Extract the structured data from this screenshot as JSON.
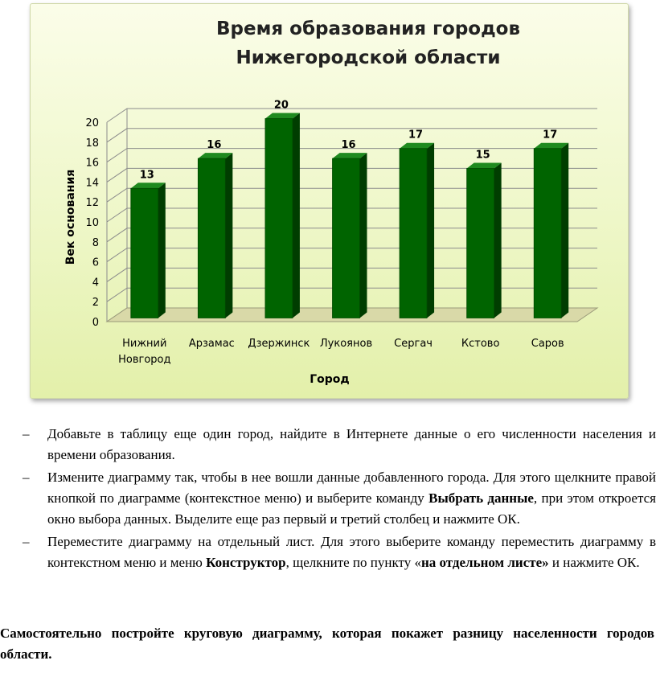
{
  "chart_data": {
    "type": "bar",
    "title_line1": "Время образования городов",
    "title_line2": "Нижегородской области",
    "xlabel": "Город",
    "ylabel": "Век основания",
    "ylim": [
      0,
      20
    ],
    "yticks": [
      "0",
      "2",
      "4",
      "6",
      "8",
      "10",
      "12",
      "14",
      "16",
      "18",
      "20"
    ],
    "categories": [
      [
        "Нижний",
        "Новгород"
      ],
      [
        "Арзамас"
      ],
      [
        "Дзержинск"
      ],
      [
        "Лукоянов"
      ],
      [
        "Сергач"
      ],
      [
        "Кстово"
      ],
      [
        "Саров"
      ]
    ],
    "values": [
      13,
      16,
      20,
      16,
      17,
      15,
      17
    ],
    "bar_color": "#006400",
    "grid": true
  },
  "bullets": [
    {
      "dash": "–",
      "parts": [
        {
          "text": "Добавьте в таблицу еще один город, найдите в Интернете данные о его численности населения и времени образования."
        }
      ]
    },
    {
      "dash": "–",
      "parts": [
        {
          "text": "Измените диаграмму так, чтобы в нее вошли данные добавленного города. Для этого щелкните правой кнопкой по диаграмме (контекстное меню) и выберите команду "
        },
        {
          "text": "Выбрать данные",
          "bold": true
        },
        {
          "text": ", при этом откроется окно выбора данных. Выделите еще раз первый и третий столбец и нажмите ОК."
        }
      ]
    },
    {
      "dash": "–",
      "parts": [
        {
          "text": "Переместите диаграмму на отдельный лист. Для этого выберите команду переместить диаграмму в контекстном меню и меню "
        },
        {
          "text": "Конструктор",
          "bold": true
        },
        {
          "text": ", щелкните по пункту «"
        },
        {
          "text": "на отдельном листе»",
          "bold": true
        },
        {
          "text": " и нажмите ОК."
        }
      ]
    }
  ],
  "task": "Самостоятельно постройте круговую диаграмму, которая покажет разницу населенности городов области."
}
